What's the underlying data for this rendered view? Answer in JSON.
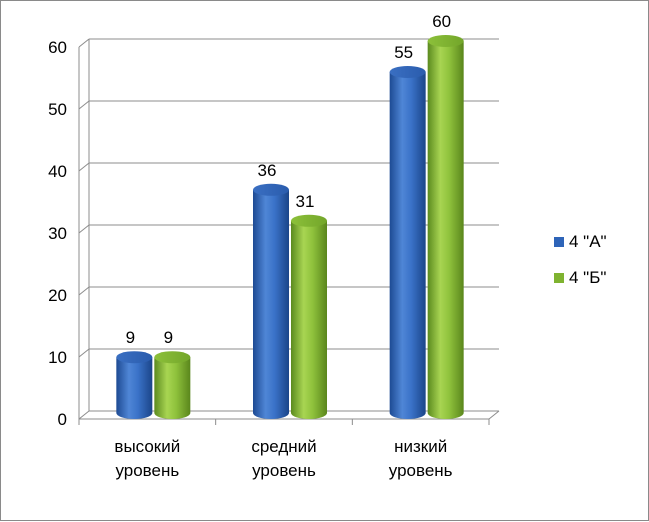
{
  "chart_data": {
    "type": "bar",
    "bar_style": "3d-cylinder",
    "categories": [
      [
        "высокий",
        "уровень"
      ],
      [
        "средний",
        "уровень"
      ],
      [
        "низкий",
        "уровень"
      ]
    ],
    "series": [
      {
        "name": "4 \"А\"",
        "values": [
          9,
          36,
          55
        ],
        "color": "#2e64b8"
      },
      {
        "name": "4 \"Б\"",
        "values": [
          9,
          31,
          60
        ],
        "color": "#7fb330"
      }
    ],
    "ylim": [
      0,
      60
    ],
    "yticks": [
      0,
      10,
      20,
      30,
      40,
      50,
      60
    ],
    "grid": true,
    "legend_position": "right",
    "data_labels": true
  }
}
